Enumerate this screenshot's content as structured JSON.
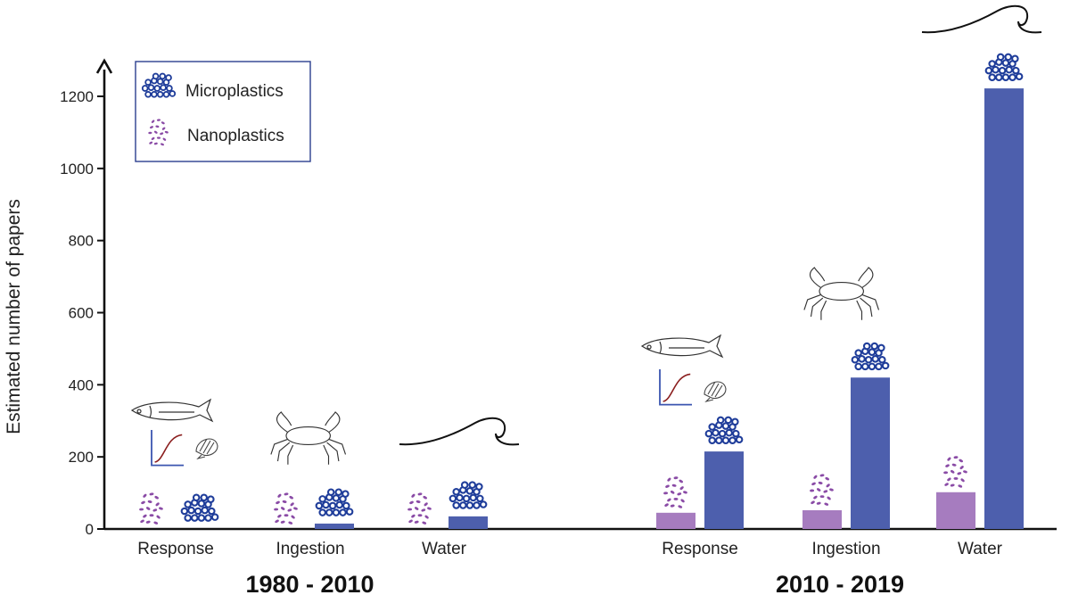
{
  "chart_data": {
    "type": "bar",
    "ylabel": "Estimated number of papers",
    "xlabel": "",
    "ylim": [
      0,
      1300
    ],
    "yticks": [
      0,
      200,
      400,
      600,
      800,
      1000,
      1200
    ],
    "legend": {
      "position": "top-left",
      "entries": [
        "Microplastics",
        "Nanoplastics"
      ]
    },
    "colors": {
      "Microplastics": "#4d5fad",
      "Nanoplastics": "#a67cbf",
      "micro_dots": "#1f3d9a",
      "nano_dots": "#8a4ba6",
      "axis": "#111111",
      "legend_border": "#2b3f8f"
    },
    "periods": [
      {
        "label": "1980 - 2010",
        "categories": [
          "Response",
          "Ingestion",
          "Water"
        ],
        "series": [
          {
            "name": "Nanoplastics",
            "values": [
              0,
              0,
              0
            ]
          },
          {
            "name": "Microplastics",
            "values": [
              0,
              15,
              35
            ]
          }
        ],
        "icons": [
          "fish-dose-response-icon",
          "crab-icon",
          "wave-icon"
        ]
      },
      {
        "label": "2010 - 2019",
        "categories": [
          "Response",
          "Ingestion",
          "Water"
        ],
        "series": [
          {
            "name": "Nanoplastics",
            "values": [
              45,
              52,
              102
            ]
          },
          {
            "name": "Microplastics",
            "values": [
              215,
              420,
              1222
            ]
          }
        ],
        "icons": [
          "fish-dose-response-icon",
          "crab-icon",
          "wave-icon"
        ]
      }
    ]
  }
}
